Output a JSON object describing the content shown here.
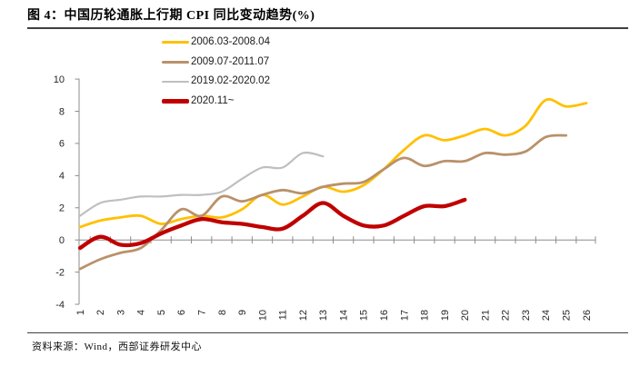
{
  "title": "图 4：中国历轮通胀上行期 CPI 同比变动趋势(%)",
  "source": "资料来源：Wind，西部证券研发中心",
  "colors": {
    "series_2006": "#FFC000",
    "series_2009": "#B9916A",
    "series_2019": "#BFBFBF",
    "series_2020": "#C00000",
    "axis": "#8C8C8C",
    "tick_label": "#262626",
    "divider": "#404040"
  },
  "legend": {
    "items": [
      {
        "label": "2006.03-2008.04",
        "color": "#FFC000"
      },
      {
        "label": "2009.07-2011.07",
        "color": "#B9916A"
      },
      {
        "label": "2019.02-2020.02",
        "color": "#BFBFBF"
      },
      {
        "label": "2020.11~",
        "color": "#C00000"
      }
    ]
  },
  "chart_data": {
    "type": "line",
    "title": "中国历轮通胀上行期 CPI 同比变动趋势(%)",
    "xlabel": "",
    "ylabel": "",
    "x_categories": [
      "1",
      "2",
      "3",
      "4",
      "5",
      "6",
      "7",
      "8",
      "9",
      "10",
      "11",
      "12",
      "13",
      "14",
      "15",
      "16",
      "17",
      "18",
      "19",
      "20",
      "21",
      "22",
      "23",
      "24",
      "25",
      "26"
    ],
    "ylim": [
      -4,
      10
    ],
    "yticks": [
      10,
      8,
      6,
      4,
      2,
      0,
      -2,
      -4
    ],
    "grid": false,
    "legend_position": "top-left-inside",
    "smoothed_lines": true,
    "series": [
      {
        "key": "series-2006-03-2008-04",
        "name": "2006.03-2008.04",
        "color": "#FFC000",
        "stroke_width": 2.8,
        "values": [
          0.8,
          1.2,
          1.4,
          1.5,
          1.0,
          1.3,
          1.5,
          1.4,
          1.9,
          2.8,
          2.2,
          2.7,
          3.3,
          3.0,
          3.4,
          4.4,
          5.6,
          6.5,
          6.2,
          6.5,
          6.9,
          6.5,
          7.1,
          8.7,
          8.3,
          8.5
        ]
      },
      {
        "key": "series-2009-07-2011-07",
        "name": "2009.07-2011.07",
        "color": "#B9916A",
        "stroke_width": 2.8,
        "values": [
          -1.8,
          -1.2,
          -0.8,
          -0.5,
          0.6,
          1.9,
          1.5,
          2.7,
          2.4,
          2.8,
          3.1,
          2.9,
          3.3,
          3.5,
          3.6,
          4.4,
          5.1,
          4.6,
          4.9,
          4.9,
          5.4,
          5.3,
          5.5,
          6.4,
          6.5
        ]
      },
      {
        "key": "series-2019-02-2020-02",
        "name": "2019.02-2020.02",
        "color": "#BFBFBF",
        "stroke_width": 2.2,
        "values": [
          1.5,
          2.3,
          2.5,
          2.7,
          2.7,
          2.8,
          2.8,
          3.0,
          3.8,
          4.5,
          4.5,
          5.4,
          5.2
        ]
      },
      {
        "key": "series-2020-11",
        "name": "2020.11~",
        "color": "#C00000",
        "stroke_width": 4.3,
        "values": [
          -0.5,
          0.2,
          -0.3,
          -0.2,
          0.4,
          0.9,
          1.3,
          1.1,
          1.0,
          0.8,
          0.7,
          1.5,
          2.3,
          1.5,
          0.9,
          0.9,
          1.5,
          2.1,
          2.1,
          2.5
        ]
      }
    ]
  }
}
